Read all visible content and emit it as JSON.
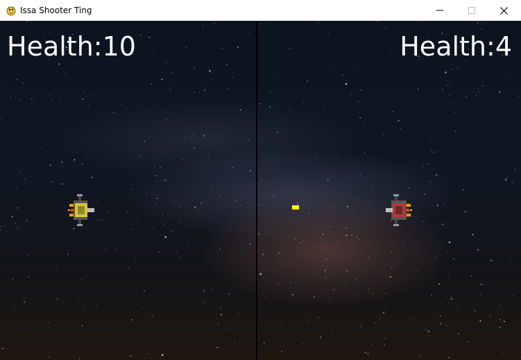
{
  "window": {
    "title": "Issa Shooter Ting",
    "app_icon": "pygame-snake-icon",
    "buttons": [
      "minimize-icon",
      "maximize-icon",
      "close-icon"
    ]
  },
  "hud": {
    "left_health_text": "Health:10",
    "right_health_text": "Health:4",
    "left_health": 10,
    "right_health": 4
  },
  "colors": {
    "health_text": "#ffffff",
    "divider": "#000000",
    "bullet": "#ffff00"
  }
}
